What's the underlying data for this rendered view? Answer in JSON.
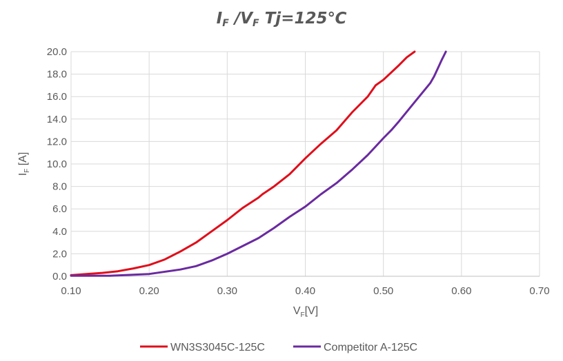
{
  "chart_data": {
    "type": "line",
    "title": {
      "main_italic_1": "I",
      "sub_1": "F",
      "slash": " /V",
      "sub_2": "F",
      "rest": " Tj=125℃"
    },
    "xlabel": {
      "main": "V",
      "sub": "F",
      "unit": "[V]"
    },
    "ylabel": {
      "main": "I",
      "sub": "F",
      "unit": " [A]"
    },
    "xlim": [
      0.1,
      0.7
    ],
    "ylim": [
      0.0,
      20.0
    ],
    "xticks": [
      "0.10",
      "0.20",
      "0.30",
      "0.40",
      "0.50",
      "0.60",
      "0.70"
    ],
    "yticks": [
      "0.0",
      "2.0",
      "4.0",
      "6.0",
      "8.0",
      "10.0",
      "12.0",
      "14.0",
      "16.0",
      "18.0",
      "20.0"
    ],
    "grid": true,
    "legend_position": "bottom",
    "series": [
      {
        "name": "WN3S3045C-125C",
        "color": "#e00e1a",
        "x": [
          0.1,
          0.12,
          0.14,
          0.16,
          0.18,
          0.2,
          0.22,
          0.24,
          0.26,
          0.28,
          0.3,
          0.32,
          0.34,
          0.345,
          0.36,
          0.38,
          0.4,
          0.42,
          0.44,
          0.46,
          0.48,
          0.49,
          0.5,
          0.52,
          0.53,
          0.54
        ],
        "y": [
          0.1,
          0.2,
          0.3,
          0.45,
          0.7,
          1.0,
          1.5,
          2.2,
          3.0,
          4.0,
          5.0,
          6.1,
          7.0,
          7.3,
          8.0,
          9.1,
          10.5,
          11.8,
          13.0,
          14.6,
          16.0,
          17.0,
          17.5,
          18.8,
          19.5,
          20.0
        ]
      },
      {
        "name": "Competitor A-125C",
        "color": "#6a2aa0",
        "x": [
          0.1,
          0.15,
          0.2,
          0.24,
          0.26,
          0.28,
          0.3,
          0.32,
          0.34,
          0.36,
          0.38,
          0.4,
          0.42,
          0.44,
          0.46,
          0.48,
          0.5,
          0.51,
          0.52,
          0.54,
          0.56,
          0.565,
          0.575,
          0.58
        ],
        "y": [
          0.05,
          0.05,
          0.2,
          0.6,
          0.9,
          1.4,
          2.0,
          2.7,
          3.4,
          4.3,
          5.3,
          6.2,
          7.3,
          8.3,
          9.5,
          10.8,
          12.3,
          13.0,
          13.8,
          15.5,
          17.2,
          17.8,
          19.3,
          20.0
        ]
      }
    ]
  }
}
